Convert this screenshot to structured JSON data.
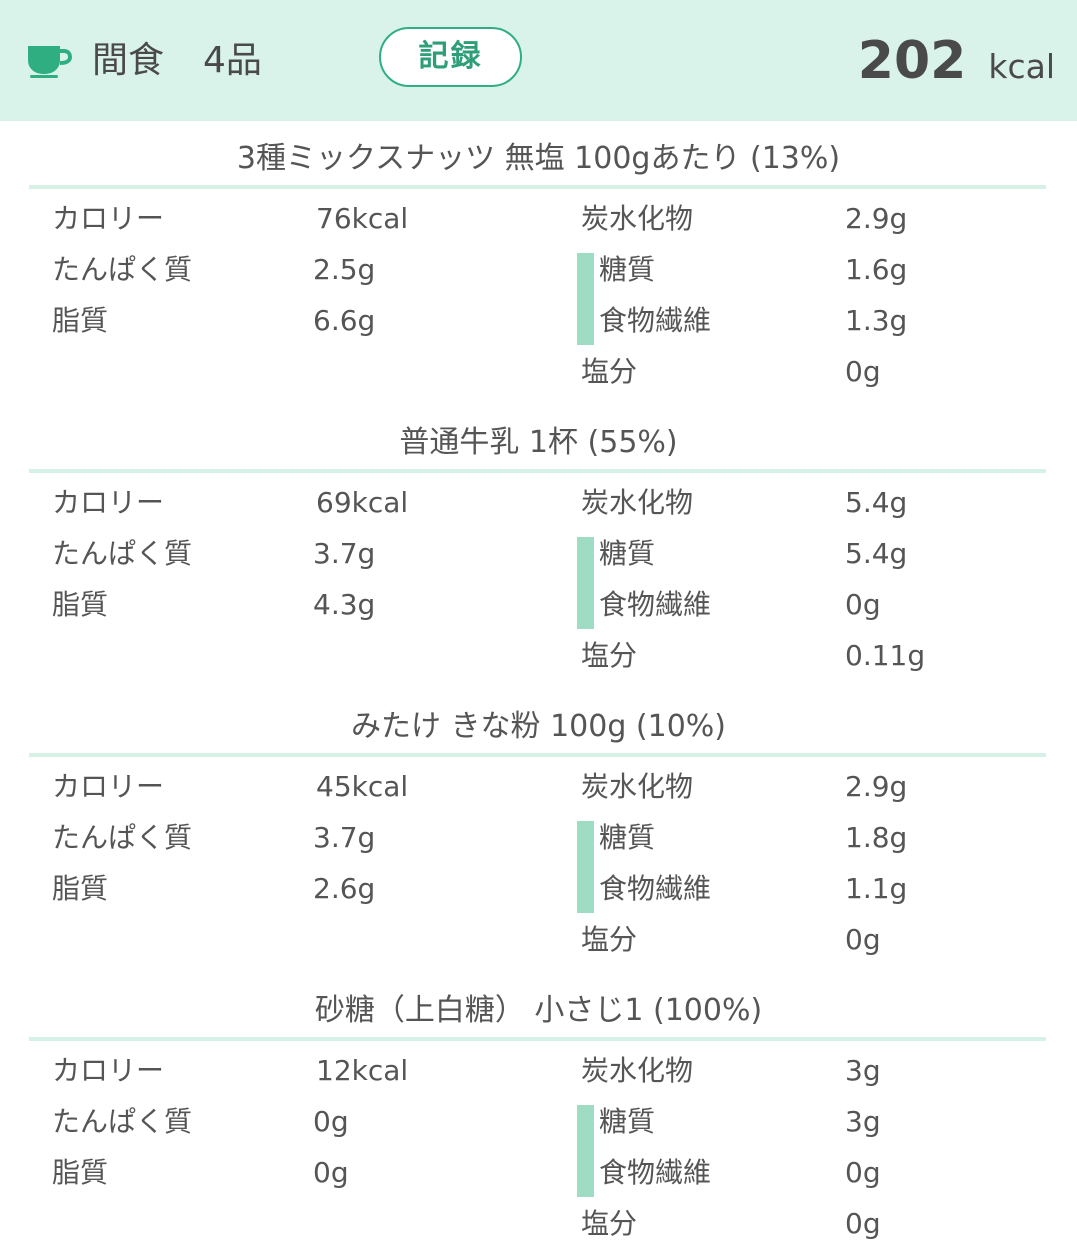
{
  "header": {
    "meal_name": "間食",
    "item_count": "4品",
    "record_label": "記録",
    "total_value": "202",
    "total_unit": "kcal",
    "icon": "cup-icon",
    "accent_color": "#2fae82"
  },
  "labels": {
    "calorie": "カロリー",
    "protein": "たんぱく質",
    "fat": "脂質",
    "carbs": "炭水化物",
    "sugar": "糖質",
    "fiber": "食物繊維",
    "salt": "塩分"
  },
  "foods": [
    {
      "title": "3種ミックスナッツ 無塩 100gあたり (13%)",
      "calorie": "76kcal",
      "protein": "2.5g",
      "fat": "6.6g",
      "carbs": "2.9g",
      "sugar": "1.6g",
      "fiber": "1.3g",
      "salt": "0g"
    },
    {
      "title": "普通牛乳 1杯 (55%)",
      "calorie": "69kcal",
      "protein": "3.7g",
      "fat": "4.3g",
      "carbs": "5.4g",
      "sugar": "5.4g",
      "fiber": "0g",
      "salt": "0.11g"
    },
    {
      "title": "みたけ きな粉 100g (10%)",
      "calorie": "45kcal",
      "protein": "3.7g",
      "fat": "2.6g",
      "carbs": "2.9g",
      "sugar": "1.8g",
      "fiber": "1.1g",
      "salt": "0g"
    },
    {
      "title": "砂糖（上白糖） 小さじ1 (100%)",
      "calorie": "12kcal",
      "protein": "0g",
      "fat": "0g",
      "carbs": "3g",
      "sugar": "3g",
      "fiber": "0g",
      "salt": "0g"
    }
  ]
}
